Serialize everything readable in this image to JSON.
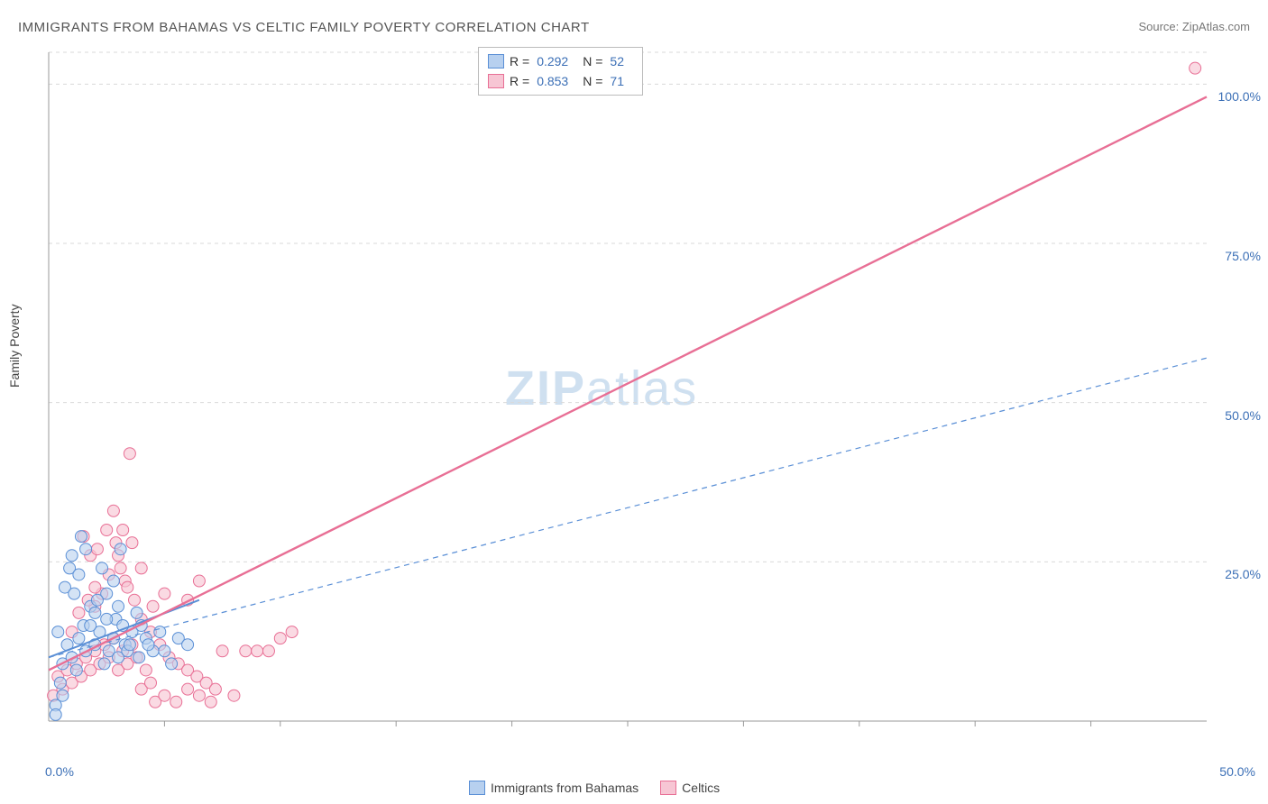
{
  "title": "IMMIGRANTS FROM BAHAMAS VS CELTIC FAMILY POVERTY CORRELATION CHART",
  "source": "Source: ZipAtlas.com",
  "y_axis_label": "Family Poverty",
  "watermark_prefix": "ZIP",
  "watermark_suffix": "atlas",
  "legend_top": {
    "rows": [
      {
        "swatch_fill": "#b7d0ef",
        "swatch_border": "#5a8fd6",
        "r_label": "R =",
        "r_value": "0.292",
        "n_label": "N =",
        "n_value": "52"
      },
      {
        "swatch_fill": "#f7c6d4",
        "swatch_border": "#e86f95",
        "r_label": "R =",
        "r_value": "0.853",
        "n_label": "N =",
        "n_value": "71"
      }
    ]
  },
  "x_legend": {
    "items": [
      {
        "swatch_fill": "#b7d0ef",
        "swatch_border": "#5a8fd6",
        "label": "Immigrants from Bahamas"
      },
      {
        "swatch_fill": "#f7c6d4",
        "swatch_border": "#e86f95",
        "label": "Celtics"
      }
    ]
  },
  "chart": {
    "type": "scatter",
    "background_color": "#ffffff",
    "grid_color": "#d9d9d9",
    "axis_color": "#999999",
    "tick_label_color": "#3b6fb6",
    "xlim": [
      0,
      50
    ],
    "ylim": [
      0,
      105
    ],
    "y_ticks": [
      25,
      50,
      75,
      100
    ],
    "y_tick_labels": [
      "25.0%",
      "50.0%",
      "75.0%",
      "100.0%"
    ],
    "x_tick_labels": {
      "min": "0.0%",
      "max": "50.0%"
    },
    "x_minor_count": 10,
    "series_blue": {
      "fill": "#b7d0ef",
      "stroke": "#5a8fd6",
      "marker_r": 6.5,
      "fill_opacity": 0.6,
      "points": [
        [
          0.3,
          2.5
        ],
        [
          0.5,
          6
        ],
        [
          0.6,
          9
        ],
        [
          0.8,
          12
        ],
        [
          0.4,
          14
        ],
        [
          1.0,
          10
        ],
        [
          1.2,
          8
        ],
        [
          1.3,
          13
        ],
        [
          1.5,
          15
        ],
        [
          1.6,
          11
        ],
        [
          1.8,
          18
        ],
        [
          2.0,
          12
        ],
        [
          2.2,
          14
        ],
        [
          2.4,
          9
        ],
        [
          2.5,
          20
        ],
        [
          2.6,
          11
        ],
        [
          2.8,
          22
        ],
        [
          3.0,
          10
        ],
        [
          3.1,
          27
        ],
        [
          3.3,
          12
        ],
        [
          1.0,
          26
        ],
        [
          1.4,
          29
        ],
        [
          0.7,
          21
        ],
        [
          0.9,
          24
        ],
        [
          1.1,
          20
        ],
        [
          1.3,
          23
        ],
        [
          1.6,
          27
        ],
        [
          2.1,
          19
        ],
        [
          2.3,
          24
        ],
        [
          2.9,
          16
        ],
        [
          3.4,
          11
        ],
        [
          3.6,
          14
        ],
        [
          3.9,
          10
        ],
        [
          4.2,
          13
        ],
        [
          4.5,
          11
        ],
        [
          4.8,
          14
        ],
        [
          5.0,
          11
        ],
        [
          5.3,
          9
        ],
        [
          5.6,
          13
        ],
        [
          6.0,
          12
        ],
        [
          1.8,
          15
        ],
        [
          2.0,
          17
        ],
        [
          2.5,
          16
        ],
        [
          2.8,
          13
        ],
        [
          3.0,
          18
        ],
        [
          3.2,
          15
        ],
        [
          3.5,
          12
        ],
        [
          3.8,
          17
        ],
        [
          4.0,
          15
        ],
        [
          4.3,
          12
        ],
        [
          0.3,
          1.0
        ],
        [
          0.6,
          4
        ]
      ],
      "trend_solid": {
        "x1": 0,
        "y1": 10,
        "x2": 6.5,
        "y2": 19,
        "width": 2
      },
      "trend_dashed": {
        "x1": 0,
        "y1": 10,
        "x2": 50,
        "y2": 57,
        "width": 1.2,
        "dash": "6,5"
      }
    },
    "series_pink": {
      "fill": "#f7c6d4",
      "stroke": "#e86f95",
      "marker_r": 6.5,
      "fill_opacity": 0.65,
      "points": [
        [
          0.2,
          4
        ],
        [
          0.4,
          7
        ],
        [
          0.6,
          5
        ],
        [
          0.8,
          8
        ],
        [
          1.0,
          6
        ],
        [
          1.2,
          9
        ],
        [
          1.4,
          7
        ],
        [
          1.6,
          10
        ],
        [
          1.8,
          8
        ],
        [
          2.0,
          11
        ],
        [
          2.2,
          9
        ],
        [
          2.4,
          12
        ],
        [
          2.6,
          10
        ],
        [
          2.8,
          13
        ],
        [
          3.0,
          8
        ],
        [
          3.2,
          11
        ],
        [
          3.4,
          9
        ],
        [
          3.6,
          12
        ],
        [
          3.8,
          10
        ],
        [
          4.0,
          5
        ],
        [
          4.2,
          8
        ],
        [
          4.4,
          6
        ],
        [
          4.6,
          3
        ],
        [
          5.0,
          4
        ],
        [
          5.5,
          3
        ],
        [
          6.0,
          5
        ],
        [
          6.5,
          4
        ],
        [
          7.0,
          3
        ],
        [
          7.5,
          11
        ],
        [
          8.0,
          4
        ],
        [
          2.0,
          18
        ],
        [
          2.3,
          20
        ],
        [
          2.6,
          23
        ],
        [
          3.0,
          26
        ],
        [
          3.3,
          22
        ],
        [
          3.6,
          28
        ],
        [
          4.0,
          24
        ],
        [
          4.5,
          18
        ],
        [
          5.0,
          20
        ],
        [
          6.0,
          19
        ],
        [
          6.5,
          22
        ],
        [
          8.5,
          11
        ],
        [
          9.0,
          11
        ],
        [
          9.5,
          11
        ],
        [
          10.0,
          13
        ],
        [
          10.5,
          14
        ],
        [
          3.5,
          42
        ],
        [
          2.8,
          33
        ],
        [
          3.2,
          30
        ],
        [
          1.5,
          29
        ],
        [
          1.8,
          26
        ],
        [
          2.1,
          27
        ],
        [
          2.5,
          30
        ],
        [
          2.9,
          28
        ],
        [
          3.1,
          24
        ],
        [
          3.4,
          21
        ],
        [
          3.7,
          19
        ],
        [
          4.0,
          16
        ],
        [
          4.4,
          14
        ],
        [
          4.8,
          12
        ],
        [
          5.2,
          10
        ],
        [
          5.6,
          9
        ],
        [
          6.0,
          8
        ],
        [
          6.4,
          7
        ],
        [
          6.8,
          6
        ],
        [
          7.2,
          5
        ],
        [
          1.0,
          14
        ],
        [
          1.3,
          17
        ],
        [
          1.7,
          19
        ],
        [
          2.0,
          21
        ],
        [
          49.5,
          102.5
        ]
      ],
      "trend_solid": {
        "x1": 0,
        "y1": 8,
        "x2": 50,
        "y2": 98,
        "width": 2.4
      }
    }
  }
}
